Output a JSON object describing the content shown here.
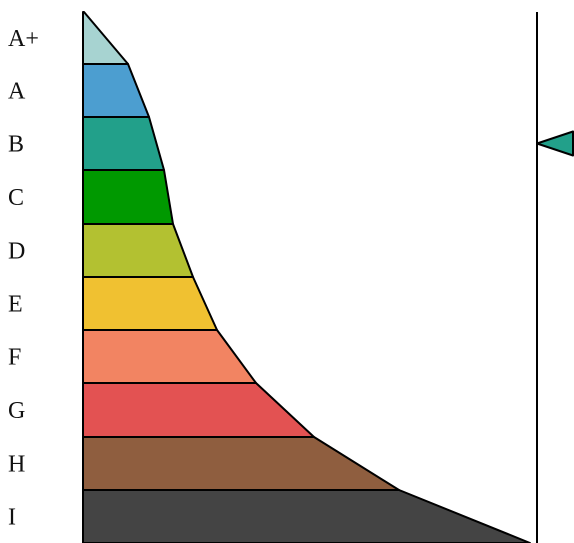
{
  "bands": [
    {
      "label": "A+",
      "color": "#a7d3d1"
    },
    {
      "label": "A",
      "color": "#4c9ed0"
    },
    {
      "label": "B",
      "color": "#22a08a"
    },
    {
      "label": "C",
      "color": "#009900"
    },
    {
      "label": "D",
      "color": "#b3c131"
    },
    {
      "label": "E",
      "color": "#f0c131"
    },
    {
      "label": "F",
      "color": "#f28462"
    },
    {
      "label": "G",
      "color": "#e35252"
    },
    {
      "label": "H",
      "color": "#8f5e3f"
    },
    {
      "label": "I",
      "color": "#444444"
    }
  ],
  "marker": {
    "band": "B",
    "color": "#22a08a"
  }
}
